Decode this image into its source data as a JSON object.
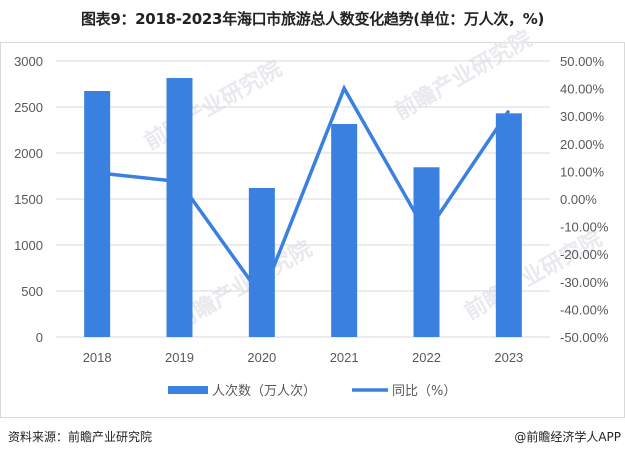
{
  "title": "图表9：2018-2023年海口市旅游总人数变化趋势(单位：万人次，%)",
  "footer": {
    "source": "资料来源：前瞻产业研究院",
    "credit": "@前瞻经济学人APP"
  },
  "watermark": "前瞻产业研究院",
  "legend": {
    "bar_label": "人次数（万人次）",
    "line_label": "同比（%）"
  },
  "colors": {
    "bar": "#3a80e0",
    "line": "#3a80e0",
    "grid": "#d9d9d9"
  },
  "chart_data": {
    "type": "bar+line",
    "title": "图表9：2018-2023年海口市旅游总人数变化趋势(单位：万人次，%)",
    "categories": [
      "2018",
      "2019",
      "2020",
      "2021",
      "2022",
      "2023"
    ],
    "series": [
      {
        "name": "人次数（万人次）",
        "type": "bar",
        "axis": "left",
        "values": [
          2674,
          2815,
          1620,
          2315,
          1845,
          2431
        ]
      },
      {
        "name": "同比（%）",
        "type": "line",
        "axis": "right",
        "values": [
          9.5,
          6.3,
          -35.4,
          40.1,
          -12.3,
          32.0
        ]
      }
    ],
    "left_axis": {
      "ylim": [
        0,
        3000
      ],
      "ticks": [
        "0",
        "500",
        "1000",
        "1500",
        "2000",
        "2500",
        "3000"
      ]
    },
    "right_axis": {
      "ylim": [
        -50,
        50
      ],
      "ticks": [
        "-50.00%",
        "-40.00%",
        "-30.00%",
        "-20.00%",
        "-10.00%",
        "0.00%",
        "10.00%",
        "20.00%",
        "30.00%",
        "40.00%",
        "50.00%"
      ]
    },
    "xlabel": "",
    "ylabel": "",
    "grid": true,
    "legend_position": "bottom"
  }
}
